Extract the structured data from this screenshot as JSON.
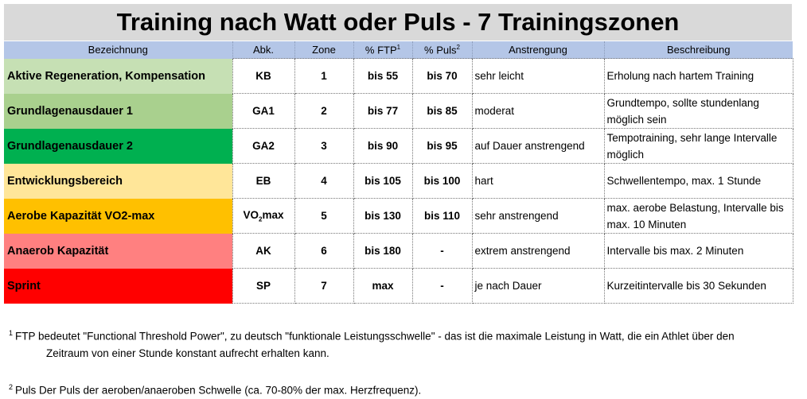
{
  "title": "Training nach Watt oder Puls - 7 Trainingszonen",
  "headers": {
    "bezeichnung": "Bezeichnung",
    "abk": "Abk.",
    "zone": "Zone",
    "ftp": "% FTP",
    "ftp_sup": "1",
    "puls": "% Puls",
    "puls_sup": "2",
    "anstrengung": "Anstrengung",
    "beschreibung": "Beschreibung"
  },
  "rows": [
    {
      "name": "Aktive Regeneration, Kompensation",
      "color": "#c6e0b4",
      "abk": "KB",
      "abk_sub": "",
      "abk_suffix": "",
      "zone": "1",
      "ftp": "bis 55",
      "puls": "bis 70",
      "anstrengung": "sehr leicht",
      "beschreibung": "Erholung nach hartem Training"
    },
    {
      "name": "Grundlagenausdauer 1",
      "color": "#a9d08e",
      "abk": "GA1",
      "abk_sub": "",
      "abk_suffix": "",
      "zone": "2",
      "ftp": "bis 77",
      "puls": "bis 85",
      "anstrengung": "moderat",
      "beschreibung": "Grundtempo, sollte stundenlang möglich sein"
    },
    {
      "name": "Grundlagenausdauer 2",
      "color": "#00b050",
      "abk": "GA2",
      "abk_sub": "",
      "abk_suffix": "",
      "zone": "3",
      "ftp": "bis 90",
      "puls": "bis 95",
      "anstrengung": "auf Dauer anstrengend",
      "beschreibung": "Tempotraining, sehr lange Intervalle möglich"
    },
    {
      "name": "Entwicklungsbereich",
      "color": "#ffe699",
      "abk": "EB",
      "abk_sub": "",
      "abk_suffix": "",
      "zone": "4",
      "ftp": "bis 105",
      "puls": "bis 100",
      "anstrengung": "hart",
      "beschreibung": "Schwellentempo, max. 1 Stunde"
    },
    {
      "name": "Aerobe Kapazität VO2-max",
      "color": "#ffc000",
      "abk": "VO",
      "abk_sub": "2",
      "abk_suffix": "max",
      "zone": "5",
      "ftp": "bis 130",
      "puls": "bis 110",
      "anstrengung": "sehr anstrengend",
      "beschreibung": "max. aerobe Belastung, Intervalle bis max. 10 Minuten"
    },
    {
      "name": "Anaerob Kapazität",
      "color": "#ff8080",
      "abk": "AK",
      "abk_sub": "",
      "abk_suffix": "",
      "zone": "6",
      "ftp": "bis 180",
      "puls": "-",
      "anstrengung": "extrem anstrengend",
      "beschreibung": "Intervalle bis max. 2 Minuten"
    },
    {
      "name": "Sprint",
      "color": "#ff0000",
      "abk": "SP",
      "abk_sub": "",
      "abk_suffix": "",
      "zone": "7",
      "ftp": "max",
      "puls": "-",
      "anstrengung": "je nach Dauer",
      "beschreibung": "Kurzeitintervalle bis 30 Sekunden"
    }
  ],
  "footnotes": [
    {
      "marker": "1",
      "line1": "FTP  bedeutet \"Functional Threshold Power\", zu deutsch \"funktionale Leistungsschwelle\" - das ist die maximale Leistung in Watt, die ein Athlet über den",
      "line2": "Zeitraum von einer Stunde konstant aufrecht erhalten kann."
    },
    {
      "marker": "2",
      "line1": "Puls Der Puls der aeroben/anaeroben Schwelle (ca. 70-80% der max. Herzfrequenz)."
    }
  ]
}
